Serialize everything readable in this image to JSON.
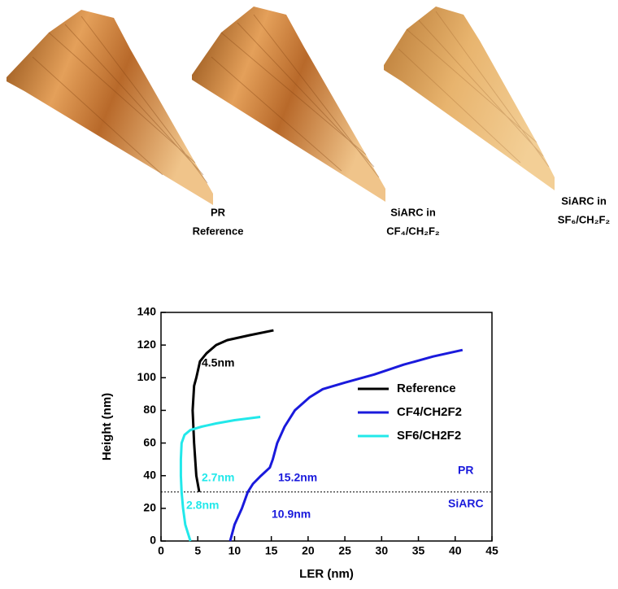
{
  "panels": [
    {
      "label_lines": [
        "PR",
        "Reference"
      ]
    },
    {
      "label_lines": [
        "SiARC in",
        "CF₄/CH₂F₂"
      ]
    },
    {
      "label_lines": [
        "SiARC in",
        "SF₆/CH₂F₂"
      ]
    }
  ],
  "chart_data": {
    "type": "line",
    "x_label": "LER (nm)",
    "y_label": "Height (nm)",
    "xlim": [
      0,
      45
    ],
    "xticks": [
      0,
      5,
      10,
      15,
      20,
      25,
      30,
      35,
      40,
      45
    ],
    "ylim": [
      0,
      140
    ],
    "yticks": [
      0,
      20,
      40,
      60,
      80,
      100,
      120,
      140
    ],
    "legend": "center right",
    "reference_line": 30,
    "series": [
      {
        "name": "Reference",
        "color": "#000000",
        "x": [
          5.2,
          4.8,
          4.5,
          4.3,
          4.5,
          4.8,
          5.3,
          6.2,
          7.5,
          9,
          12,
          15.3
        ],
        "values": [
          30,
          40,
          60,
          80,
          95,
          100,
          110,
          115,
          120,
          123,
          126,
          129
        ]
      },
      {
        "name": "CF4/CH2F2",
        "color": "#1a1adc",
        "x": [
          9.4,
          10,
          11,
          11.8,
          12.5,
          13.6,
          14.8,
          15.2,
          15.8,
          16.8,
          18.2,
          20.2,
          22,
          25,
          29,
          33,
          37,
          41
        ],
        "values": [
          0,
          10,
          20,
          30,
          35,
          40,
          45,
          50,
          60,
          70,
          80,
          88,
          93,
          97,
          102,
          108,
          113,
          117
        ]
      },
      {
        "name": "SF6/CH2F2",
        "color": "#22e8ea",
        "x": [
          4,
          3.3,
          3,
          2.8,
          2.7,
          2.7,
          2.8,
          3.2,
          4,
          5.5,
          7.5,
          10,
          13.5
        ],
        "values": [
          0,
          10,
          20,
          30,
          40,
          50,
          60,
          65,
          68,
          70,
          72,
          74,
          76
        ]
      }
    ],
    "annotations": [
      {
        "text": "4.5nm",
        "color": "#000000"
      },
      {
        "text": "2.7nm",
        "color": "#22e8ea"
      },
      {
        "text": "15.2nm",
        "color": "#1a1adc"
      },
      {
        "text": "PR",
        "color": "#1a1adc"
      },
      {
        "text": "2.8nm",
        "color": "#22e8ea"
      },
      {
        "text": "SiARC",
        "color": "#1a1adc"
      },
      {
        "text": "10.9nm",
        "color": "#1a1adc"
      }
    ]
  }
}
